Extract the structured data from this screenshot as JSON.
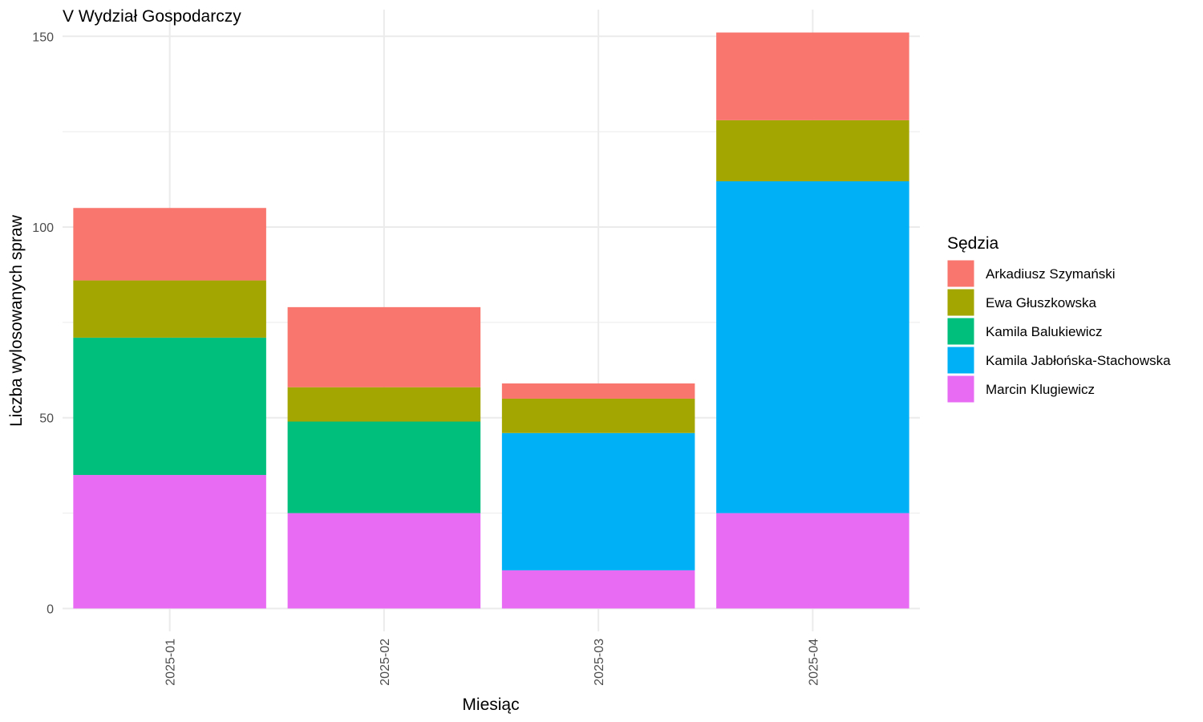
{
  "chart_data": {
    "type": "bar",
    "stacked": true,
    "title": "V Wydział Gospodarczy",
    "xlabel": "Miesiąc",
    "ylabel": "Liczba wylosowanych spraw",
    "categories": [
      "2025-01",
      "2025-02",
      "2025-03",
      "2025-04"
    ],
    "ylim": [
      -6,
      157
    ],
    "yticks": [
      0,
      50,
      100,
      150
    ],
    "grid": true,
    "legend": {
      "title": "Sędzia",
      "placement": "right"
    },
    "series": [
      {
        "name": "Marcin Klugiewicz",
        "color": "#E76BF3",
        "values": [
          35,
          25,
          10,
          25
        ]
      },
      {
        "name": "Kamila Jabłońska-Stachowska",
        "color": "#00B0F6",
        "values": [
          0,
          0,
          36,
          87
        ]
      },
      {
        "name": "Kamila Balukiewicz",
        "color": "#00BF7D",
        "values": [
          36,
          24,
          0,
          0
        ]
      },
      {
        "name": "Ewa Głuszkowska",
        "color": "#A3A500",
        "values": [
          15,
          9,
          9,
          16
        ]
      },
      {
        "name": "Arkadiusz Szymański",
        "color": "#F8766D",
        "values": [
          19,
          21,
          4,
          23
        ]
      }
    ],
    "legend_order": [
      "Arkadiusz Szymański",
      "Ewa Głuszkowska",
      "Kamila Balukiewicz",
      "Kamila Jabłońska-Stachowska",
      "Marcin Klugiewicz"
    ]
  }
}
